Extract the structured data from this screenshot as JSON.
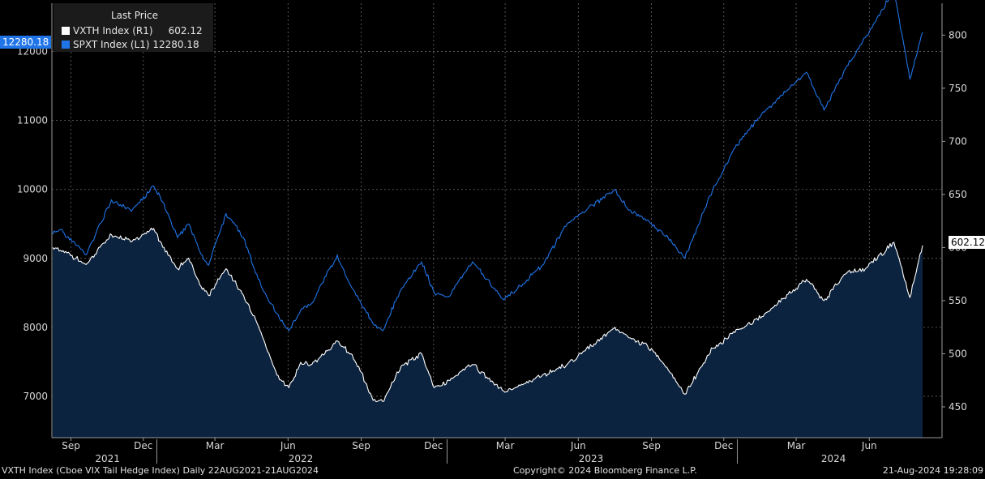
{
  "legend": {
    "title": "Last Price",
    "entries": [
      {
        "label": "VXTH Index  (R1)",
        "value": "602.12",
        "color": "#ffffff"
      },
      {
        "label": "SPXT Index  (L1)",
        "value": "12280.18",
        "color": "#1f74e8"
      }
    ]
  },
  "last_tags": {
    "left": "12280.18",
    "right": "602.12"
  },
  "footer": {
    "left": "VXTH Index (Cboe VIX Tail Hedge Index)  Daily 22AUG2021-21AUG2024",
    "center": "Copyright© 2024 Bloomberg Finance L.P.",
    "right": "21-Aug-2024 19:28:09"
  },
  "chart_data": {
    "type": "line",
    "x_range": [
      "2021-08-22",
      "2024-08-21"
    ],
    "month_ticks": [
      {
        "label": "Sep",
        "date": "2021-09-15"
      },
      {
        "label": "Dec",
        "date": "2021-12-15"
      },
      {
        "label": "Mar",
        "date": "2022-03-15"
      },
      {
        "label": "Jun",
        "date": "2022-06-15"
      },
      {
        "label": "Sep",
        "date": "2022-09-15"
      },
      {
        "label": "Dec",
        "date": "2022-12-15"
      },
      {
        "label": "Mar",
        "date": "2023-03-15"
      },
      {
        "label": "Jun",
        "date": "2023-06-15"
      },
      {
        "label": "Sep",
        "date": "2023-09-15"
      },
      {
        "label": "Dec",
        "date": "2023-12-15"
      },
      {
        "label": "Mar",
        "date": "2024-03-15"
      },
      {
        "label": "Jun",
        "date": "2024-06-15"
      }
    ],
    "year_labels": [
      {
        "label": "2021",
        "date": "2021-10-31"
      },
      {
        "label": "2022",
        "date": "2022-07-01"
      },
      {
        "label": "2023",
        "date": "2023-07-01"
      },
      {
        "label": "2024",
        "date": "2024-05-01"
      }
    ],
    "left_axis": {
      "ticks": [
        7000,
        8000,
        9000,
        10000,
        11000,
        12000
      ],
      "range": [
        6400,
        12700
      ]
    },
    "right_axis": {
      "ticks": [
        450,
        500,
        550,
        600,
        650,
        700,
        750,
        800
      ],
      "range": [
        421,
        830
      ]
    },
    "grid": true,
    "series": [
      {
        "name": "VXTH Index",
        "axis": "right",
        "color": "#ffffff",
        "area": true,
        "x": [
          "2021-08-23",
          "2021-09-10",
          "2021-10-04",
          "2021-11-05",
          "2021-12-01",
          "2021-12-28",
          "2022-01-05",
          "2022-01-27",
          "2022-02-10",
          "2022-02-24",
          "2022-03-07",
          "2022-03-29",
          "2022-04-20",
          "2022-05-12",
          "2022-06-01",
          "2022-06-16",
          "2022-07-01",
          "2022-07-15",
          "2022-08-16",
          "2022-09-02",
          "2022-09-12",
          "2022-09-30",
          "2022-10-12",
          "2022-11-04",
          "2022-11-30",
          "2022-12-16",
          "2023-01-03",
          "2023-02-02",
          "2023-03-13",
          "2023-04-03",
          "2023-05-01",
          "2023-06-01",
          "2023-07-31",
          "2023-08-18",
          "2023-09-15",
          "2023-10-06",
          "2023-10-27",
          "2023-12-01",
          "2023-12-29",
          "2024-02-01",
          "2024-03-28",
          "2024-04-19",
          "2024-05-16",
          "2024-06-10",
          "2024-07-16",
          "2024-08-05",
          "2024-08-21"
        ],
        "y": [
          600,
          595,
          584,
          612,
          606,
          618,
          606,
          580,
          590,
          565,
          555,
          580,
          555,
          520,
          480,
          468,
          492,
          490,
          512,
          500,
          488,
          456,
          455,
          488,
          500,
          468,
          475,
          490,
          465,
          470,
          480,
          490,
          525,
          515,
          505,
          485,
          462,
          505,
          520,
          535,
          570,
          550,
          575,
          580,
          605,
          553,
          602
        ]
      },
      {
        "name": "SPXT Index",
        "axis": "left",
        "color": "#1f74e8",
        "area": false,
        "x": [
          "2021-08-23",
          "2021-09-02",
          "2021-10-04",
          "2021-11-05",
          "2021-12-01",
          "2021-12-28",
          "2022-01-05",
          "2022-01-27",
          "2022-02-10",
          "2022-02-24",
          "2022-03-07",
          "2022-03-29",
          "2022-04-20",
          "2022-05-12",
          "2022-06-01",
          "2022-06-16",
          "2022-07-01",
          "2022-07-15",
          "2022-08-16",
          "2022-09-02",
          "2022-09-12",
          "2022-09-30",
          "2022-10-12",
          "2022-11-04",
          "2022-11-30",
          "2022-12-16",
          "2023-01-03",
          "2023-02-02",
          "2023-03-13",
          "2023-04-03",
          "2023-05-01",
          "2023-06-01",
          "2023-07-31",
          "2023-08-18",
          "2023-09-15",
          "2023-10-06",
          "2023-10-27",
          "2023-12-01",
          "2023-12-29",
          "2024-02-01",
          "2024-03-28",
          "2024-04-19",
          "2024-05-16",
          "2024-06-10",
          "2024-07-16",
          "2024-08-05",
          "2024-08-21"
        ],
        "y": [
          9350,
          9420,
          9050,
          9850,
          9700,
          10050,
          9900,
          9300,
          9500,
          9100,
          8900,
          9650,
          9300,
          8600,
          8200,
          7950,
          8250,
          8350,
          9050,
          8600,
          8400,
          8050,
          7950,
          8550,
          8950,
          8500,
          8450,
          8950,
          8400,
          8600,
          8900,
          9500,
          10000,
          9700,
          9500,
          9300,
          9000,
          10000,
          10600,
          11100,
          11700,
          11150,
          11750,
          12200,
          12900,
          11600,
          12280
        ]
      }
    ]
  }
}
